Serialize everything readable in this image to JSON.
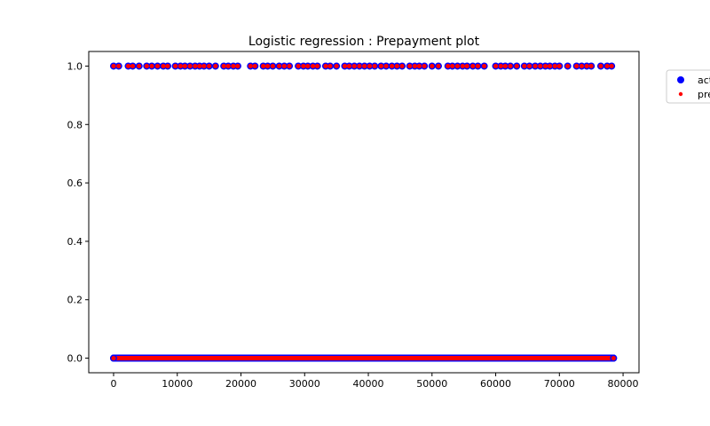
{
  "chart_data": {
    "type": "scatter",
    "title": "Logistic regression : Prepayment plot",
    "xlabel": "",
    "ylabel": "",
    "xlim": [
      -3900,
      82500
    ],
    "ylim": [
      -0.05,
      1.05
    ],
    "x_ticks": [
      0,
      10000,
      20000,
      30000,
      40000,
      50000,
      60000,
      70000,
      80000
    ],
    "x_tick_labels": [
      "0",
      "10000",
      "20000",
      "30000",
      "40000",
      "50000",
      "60000",
      "70000",
      "80000"
    ],
    "y_ticks": [
      0.0,
      0.2,
      0.4,
      0.6,
      0.8,
      1.0
    ],
    "y_tick_labels": [
      "0.0",
      "0.2",
      "0.4",
      "0.6",
      "0.8",
      "1.0"
    ],
    "grid": false,
    "legend": {
      "placement": "right-outside",
      "entries": [
        "act",
        "pre"
      ]
    },
    "series": [
      {
        "name": "act",
        "color": "#0000ff",
        "marker": "circle-large",
        "points": [
          {
            "x": 0,
            "y": 0
          },
          {
            "x": 78500,
            "y": 0
          },
          {
            "x": 0,
            "y": 1
          },
          {
            "x": 800,
            "y": 1
          },
          {
            "x": 2300,
            "y": 1
          },
          {
            "x": 3000,
            "y": 1
          },
          {
            "x": 4000,
            "y": 1
          },
          {
            "x": 5200,
            "y": 1
          },
          {
            "x": 6000,
            "y": 1
          },
          {
            "x": 6900,
            "y": 1
          },
          {
            "x": 7800,
            "y": 1
          },
          {
            "x": 8500,
            "y": 1
          },
          {
            "x": 9700,
            "y": 1
          },
          {
            "x": 10500,
            "y": 1
          },
          {
            "x": 11200,
            "y": 1
          },
          {
            "x": 12000,
            "y": 1
          },
          {
            "x": 12800,
            "y": 1
          },
          {
            "x": 13500,
            "y": 1
          },
          {
            "x": 14200,
            "y": 1
          },
          {
            "x": 15000,
            "y": 1
          },
          {
            "x": 16000,
            "y": 1
          },
          {
            "x": 17300,
            "y": 1
          },
          {
            "x": 18000,
            "y": 1
          },
          {
            "x": 18800,
            "y": 1
          },
          {
            "x": 19500,
            "y": 1
          },
          {
            "x": 21500,
            "y": 1
          },
          {
            "x": 22200,
            "y": 1
          },
          {
            "x": 23500,
            "y": 1
          },
          {
            "x": 24200,
            "y": 1
          },
          {
            "x": 25000,
            "y": 1
          },
          {
            "x": 26000,
            "y": 1
          },
          {
            "x": 26800,
            "y": 1
          },
          {
            "x": 27600,
            "y": 1
          },
          {
            "x": 29000,
            "y": 1
          },
          {
            "x": 29800,
            "y": 1
          },
          {
            "x": 30500,
            "y": 1
          },
          {
            "x": 31300,
            "y": 1
          },
          {
            "x": 32000,
            "y": 1
          },
          {
            "x": 33300,
            "y": 1
          },
          {
            "x": 34000,
            "y": 1
          },
          {
            "x": 35000,
            "y": 1
          },
          {
            "x": 36300,
            "y": 1
          },
          {
            "x": 37000,
            "y": 1
          },
          {
            "x": 37800,
            "y": 1
          },
          {
            "x": 38600,
            "y": 1
          },
          {
            "x": 39400,
            "y": 1
          },
          {
            "x": 40200,
            "y": 1
          },
          {
            "x": 41000,
            "y": 1
          },
          {
            "x": 42000,
            "y": 1
          },
          {
            "x": 42800,
            "y": 1
          },
          {
            "x": 43700,
            "y": 1
          },
          {
            "x": 44500,
            "y": 1
          },
          {
            "x": 45300,
            "y": 1
          },
          {
            "x": 46500,
            "y": 1
          },
          {
            "x": 47300,
            "y": 1
          },
          {
            "x": 48000,
            "y": 1
          },
          {
            "x": 48800,
            "y": 1
          },
          {
            "x": 50000,
            "y": 1
          },
          {
            "x": 51000,
            "y": 1
          },
          {
            "x": 52500,
            "y": 1
          },
          {
            "x": 53200,
            "y": 1
          },
          {
            "x": 54000,
            "y": 1
          },
          {
            "x": 54800,
            "y": 1
          },
          {
            "x": 55500,
            "y": 1
          },
          {
            "x": 56400,
            "y": 1
          },
          {
            "x": 57200,
            "y": 1
          },
          {
            "x": 58200,
            "y": 1
          },
          {
            "x": 60000,
            "y": 1
          },
          {
            "x": 60800,
            "y": 1
          },
          {
            "x": 61500,
            "y": 1
          },
          {
            "x": 62300,
            "y": 1
          },
          {
            "x": 63300,
            "y": 1
          },
          {
            "x": 64500,
            "y": 1
          },
          {
            "x": 65300,
            "y": 1
          },
          {
            "x": 66200,
            "y": 1
          },
          {
            "x": 67000,
            "y": 1
          },
          {
            "x": 67800,
            "y": 1
          },
          {
            "x": 68500,
            "y": 1
          },
          {
            "x": 69300,
            "y": 1
          },
          {
            "x": 70000,
            "y": 1
          },
          {
            "x": 71300,
            "y": 1
          },
          {
            "x": 72700,
            "y": 1
          },
          {
            "x": 73500,
            "y": 1
          },
          {
            "x": 74300,
            "y": 1
          },
          {
            "x": 75000,
            "y": 1
          },
          {
            "x": 76500,
            "y": 1
          },
          {
            "x": 77500,
            "y": 1
          },
          {
            "x": 78200,
            "y": 1
          }
        ]
      },
      {
        "name": "pre",
        "color": "#ff0000",
        "marker": "circle-small",
        "points": [
          {
            "x": 0,
            "y": 0
          },
          {
            "x": 78500,
            "y": 0
          },
          {
            "x": 0,
            "y": 1
          },
          {
            "x": 800,
            "y": 1
          },
          {
            "x": 2300,
            "y": 1
          },
          {
            "x": 3000,
            "y": 1
          },
          {
            "x": 4000,
            "y": 1
          },
          {
            "x": 5200,
            "y": 1
          },
          {
            "x": 6000,
            "y": 1
          },
          {
            "x": 6900,
            "y": 1
          },
          {
            "x": 7800,
            "y": 1
          },
          {
            "x": 8500,
            "y": 1
          },
          {
            "x": 9700,
            "y": 1
          },
          {
            "x": 10500,
            "y": 1
          },
          {
            "x": 11200,
            "y": 1
          },
          {
            "x": 12000,
            "y": 1
          },
          {
            "x": 12800,
            "y": 1
          },
          {
            "x": 13500,
            "y": 1
          },
          {
            "x": 14200,
            "y": 1
          },
          {
            "x": 15000,
            "y": 1
          },
          {
            "x": 16000,
            "y": 1
          },
          {
            "x": 17300,
            "y": 1
          },
          {
            "x": 18000,
            "y": 1
          },
          {
            "x": 18800,
            "y": 1
          },
          {
            "x": 19500,
            "y": 1
          },
          {
            "x": 21500,
            "y": 1
          },
          {
            "x": 22200,
            "y": 1
          },
          {
            "x": 23500,
            "y": 1
          },
          {
            "x": 24200,
            "y": 1
          },
          {
            "x": 25000,
            "y": 1
          },
          {
            "x": 26000,
            "y": 1
          },
          {
            "x": 26800,
            "y": 1
          },
          {
            "x": 27600,
            "y": 1
          },
          {
            "x": 29000,
            "y": 1
          },
          {
            "x": 29800,
            "y": 1
          },
          {
            "x": 30500,
            "y": 1
          },
          {
            "x": 31300,
            "y": 1
          },
          {
            "x": 32000,
            "y": 1
          },
          {
            "x": 33300,
            "y": 1
          },
          {
            "x": 34000,
            "y": 1
          },
          {
            "x": 35000,
            "y": 1
          },
          {
            "x": 36300,
            "y": 1
          },
          {
            "x": 37000,
            "y": 1
          },
          {
            "x": 37800,
            "y": 1
          },
          {
            "x": 38600,
            "y": 1
          },
          {
            "x": 39400,
            "y": 1
          },
          {
            "x": 40200,
            "y": 1
          },
          {
            "x": 41000,
            "y": 1
          },
          {
            "x": 42000,
            "y": 1
          },
          {
            "x": 42800,
            "y": 1
          },
          {
            "x": 43700,
            "y": 1
          },
          {
            "x": 44500,
            "y": 1
          },
          {
            "x": 45300,
            "y": 1
          },
          {
            "x": 46500,
            "y": 1
          },
          {
            "x": 47300,
            "y": 1
          },
          {
            "x": 48000,
            "y": 1
          },
          {
            "x": 48800,
            "y": 1
          },
          {
            "x": 50000,
            "y": 1
          },
          {
            "x": 51000,
            "y": 1
          },
          {
            "x": 52500,
            "y": 1
          },
          {
            "x": 53200,
            "y": 1
          },
          {
            "x": 54000,
            "y": 1
          },
          {
            "x": 54800,
            "y": 1
          },
          {
            "x": 55500,
            "y": 1
          },
          {
            "x": 56400,
            "y": 1
          },
          {
            "x": 57200,
            "y": 1
          },
          {
            "x": 58200,
            "y": 1
          },
          {
            "x": 60000,
            "y": 1
          },
          {
            "x": 60800,
            "y": 1
          },
          {
            "x": 61500,
            "y": 1
          },
          {
            "x": 62300,
            "y": 1
          },
          {
            "x": 63300,
            "y": 1
          },
          {
            "x": 64500,
            "y": 1
          },
          {
            "x": 65300,
            "y": 1
          },
          {
            "x": 66200,
            "y": 1
          },
          {
            "x": 67000,
            "y": 1
          },
          {
            "x": 67800,
            "y": 1
          },
          {
            "x": 68500,
            "y": 1
          },
          {
            "x": 69300,
            "y": 1
          },
          {
            "x": 70000,
            "y": 1
          },
          {
            "x": 71300,
            "y": 1
          },
          {
            "x": 72700,
            "y": 1
          },
          {
            "x": 73500,
            "y": 1
          },
          {
            "x": 74300,
            "y": 1
          },
          {
            "x": 75000,
            "y": 1
          },
          {
            "x": 76500,
            "y": 1
          },
          {
            "x": 77500,
            "y": 1
          },
          {
            "x": 78200,
            "y": 1
          }
        ]
      }
    ],
    "dense_bands": [
      {
        "y": 0,
        "x_from": 0,
        "x_to": 78500
      }
    ]
  }
}
